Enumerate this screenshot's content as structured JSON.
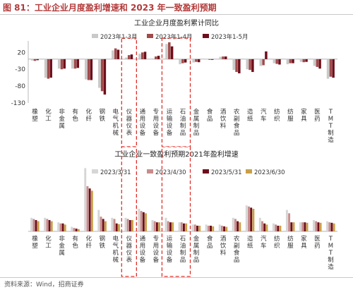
{
  "figure_title": "图 81：工业企业月度盈利增速和 2023 年一致盈利预期",
  "source": "资料来源：Wind，招商证券",
  "colors": {
    "title_red": "#b33a3a",
    "highlight_red": "#e0302a",
    "s1_c1": "#c9c9c9",
    "s1_c2": "#a04a4a",
    "s1_c3": "#6e0e1a",
    "s2_c1": "#d6d6d6",
    "s2_c2": "#c98c8c",
    "s2_c3": "#6e0e1a",
    "s2_c4": "#c9a046"
  },
  "chart_data": [
    {
      "type": "bar",
      "title": "工业企业月度盈利累计同比",
      "categories": [
        "橡塑",
        "化工",
        "非金属",
        "有色",
        "化纤",
        "钢铁",
        "电气机械",
        "仪器仪表",
        "通用设备",
        "专用设备",
        "运输设备",
        "石油制品",
        "金属制品",
        "食品",
        "酒饮料",
        "农副食品",
        "造纸",
        "汽车",
        "纺织",
        "纺服",
        "家具",
        "医药",
        "TMT制造"
      ],
      "ylim": [
        -130,
        50
      ],
      "yticks": [
        20,
        -30,
        -80,
        -130
      ],
      "grid": false,
      "legend_position": "top-center",
      "series": [
        {
          "name": "2023年1-3月",
          "values": [
            -4,
            -55,
            -28,
            -28,
            -60,
            -85,
            26,
            5,
            16,
            2,
            45,
            -15,
            -10,
            -1,
            7,
            -32,
            -30,
            -20,
            -12,
            -15,
            -8,
            -20,
            -58
          ]
        },
        {
          "name": "2023年1-4月",
          "values": [
            -5,
            -58,
            -30,
            -28,
            -62,
            -95,
            32,
            12,
            20,
            8,
            50,
            -12,
            -8,
            -2,
            8,
            -38,
            -32,
            -18,
            -14,
            -12,
            -9,
            -23,
            -52
          ]
        },
        {
          "name": "2023年1-5月",
          "values": [
            -3,
            -55,
            -28,
            -26,
            -62,
            -105,
            28,
            14,
            22,
            10,
            38,
            -10,
            -9,
            -2,
            8,
            -42,
            -38,
            23,
            -16,
            -12,
            -8,
            -28,
            -55
          ]
        }
      ]
    },
    {
      "type": "bar",
      "title": "工业企业一致盈利预期2021年盈利增速",
      "categories": [
        "橡塑",
        "化工",
        "非金属",
        "有色",
        "化纤",
        "钢铁",
        "电气机械",
        "仪器仪表",
        "通用设备",
        "专用设备",
        "运输设备",
        "石油制品",
        "金属制品",
        "食品",
        "酒饮料",
        "农副食品",
        "造纸",
        "汽车",
        "纺织",
        "纺服",
        "家具",
        "医药",
        "TMT制造"
      ],
      "ylim": [
        0,
        350
      ],
      "grid": false,
      "legend_position": "top-left",
      "series": [
        {
          "name": "2023/3/31",
          "values": [
            60,
            60,
            40,
            20,
            280,
            95,
            60,
            60,
            100,
            50,
            60,
            40,
            30,
            30,
            30,
            60,
            115,
            60,
            35,
            95,
            40,
            50,
            45
          ]
        },
        {
          "name": "2023/4/30",
          "values": [
            55,
            55,
            35,
            15,
            200,
            65,
            55,
            55,
            90,
            45,
            45,
            40,
            30,
            25,
            25,
            55,
            110,
            45,
            30,
            80,
            40,
            45,
            40
          ]
        },
        {
          "name": "2023/5/31",
          "values": [
            50,
            50,
            35,
            12,
            190,
            55,
            35,
            50,
            85,
            40,
            40,
            35,
            25,
            25,
            22,
            45,
            105,
            35,
            25,
            40,
            40,
            40,
            38
          ]
        },
        {
          "name": "2023/6/30",
          "values": [
            45,
            45,
            30,
            10,
            180,
            45,
            32,
            50,
            80,
            40,
            40,
            35,
            25,
            22,
            20,
            40,
            100,
            30,
            25,
            40,
            38,
            38,
            35
          ]
        }
      ]
    }
  ]
}
